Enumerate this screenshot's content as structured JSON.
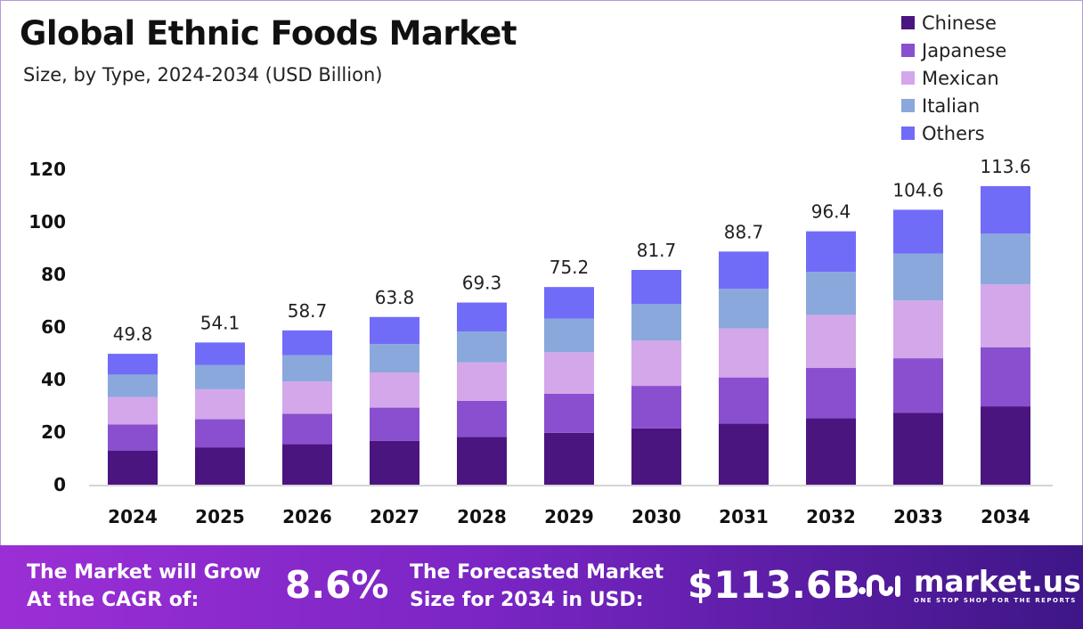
{
  "chart_data": {
    "type": "bar",
    "stacked": true,
    "title": "Global Ethnic Foods Market",
    "subtitle": "Size, by Type, 2024-2034 (USD Billion)",
    "categories": [
      "2024",
      "2025",
      "2026",
      "2027",
      "2028",
      "2029",
      "2030",
      "2031",
      "2032",
      "2033",
      "2034"
    ],
    "totals": [
      49.8,
      54.1,
      58.7,
      63.8,
      69.3,
      75.2,
      81.7,
      88.7,
      96.4,
      104.6,
      113.6
    ],
    "total_labels": [
      "49.8",
      "54.1",
      "58.7",
      "63.8",
      "69.3",
      "75.2",
      "81.7",
      "88.7",
      "96.4",
      "104.6",
      "113.6"
    ],
    "series": [
      {
        "name": "Chinese",
        "color": "#4b1580",
        "values": [
          13.0,
          14.2,
          15.4,
          16.7,
          18.2,
          19.7,
          21.4,
          23.2,
          25.3,
          27.4,
          29.8
        ]
      },
      {
        "name": "Japanese",
        "color": "#8a4fcf",
        "values": [
          9.9,
          10.7,
          11.6,
          12.6,
          13.7,
          14.9,
          16.2,
          17.6,
          19.1,
          20.7,
          22.5
        ]
      },
      {
        "name": "Mexican",
        "color": "#d3a7ea",
        "values": [
          10.5,
          11.4,
          12.3,
          13.4,
          14.6,
          15.8,
          17.2,
          18.6,
          20.2,
          22.0,
          23.9
        ]
      },
      {
        "name": "Italian",
        "color": "#8aa8dc",
        "values": [
          8.5,
          9.2,
          10.0,
          10.8,
          11.8,
          12.8,
          13.9,
          15.1,
          16.4,
          17.8,
          19.3
        ]
      },
      {
        "name": "Others",
        "color": "#716cf8",
        "values": [
          7.9,
          8.6,
          9.4,
          10.3,
          11.0,
          12.0,
          13.0,
          14.2,
          15.4,
          16.7,
          18.1
        ]
      }
    ],
    "ylim": [
      0,
      120
    ],
    "yticks": [
      "0",
      "20",
      "40",
      "60",
      "80",
      "100",
      "120"
    ],
    "grid": false,
    "legend": "top-right",
    "xlabel": "",
    "ylabel": ""
  },
  "footer": {
    "cagr_text_1": "The Market will Grow",
    "cagr_text_2": "At the CAGR of:",
    "cagr_value": "8.6%",
    "forecast_text_1": "The Forecasted Market",
    "forecast_text_2": "Size for 2034 in USD:",
    "forecast_value": "$113.6B",
    "logo_text": "market.us",
    "logo_tagline": "ONE STOP SHOP FOR THE REPORTS"
  }
}
